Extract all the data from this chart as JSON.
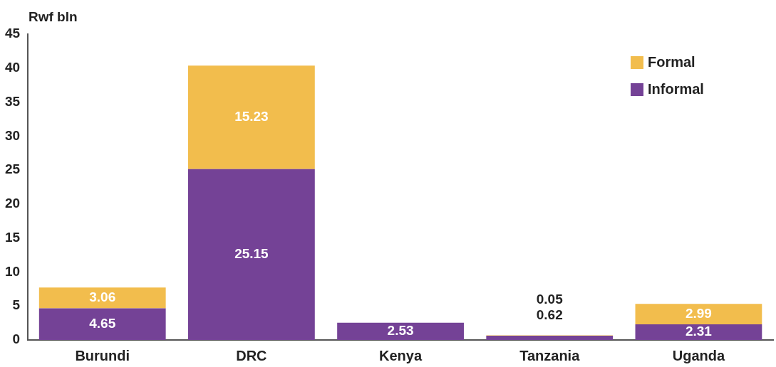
{
  "chart_data": {
    "type": "bar",
    "stacked": true,
    "ylabel": "Rwf bln",
    "categories": [
      "Burundi",
      "DRC",
      "Kenya",
      "Tanzania",
      "Uganda"
    ],
    "series": [
      {
        "name": "Informal",
        "color": "#744296",
        "values": [
          4.65,
          25.15,
          2.53,
          0.62,
          2.31
        ]
      },
      {
        "name": "Formal",
        "color": "#f2bd4d",
        "values": [
          3.06,
          15.23,
          null,
          0.05,
          2.99
        ]
      }
    ],
    "ylim": [
      0,
      45
    ],
    "yticks": [
      0,
      5,
      10,
      15,
      20,
      25,
      30,
      35,
      40,
      45
    ],
    "grid": false,
    "legend": "top right",
    "data_labels": true
  }
}
